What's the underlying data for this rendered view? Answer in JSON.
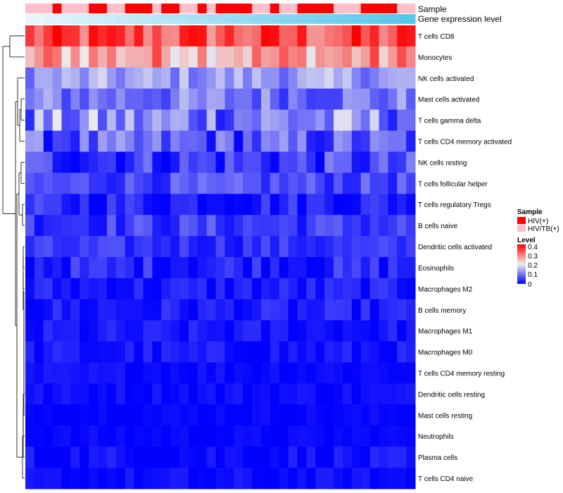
{
  "chart_data": {
    "type": "heatmap",
    "annotations": {
      "sample_label": "Sample",
      "gene_label": "Gene expression level",
      "sample_groups": [
        "HIV/TB(+)",
        "HIV/TB(+)",
        "HIV/TB(+)",
        "HIV(+)",
        "HIV/TB(+)",
        "HIV/TB(+)",
        "HIV/TB(+)",
        "HIV(+)",
        "HIV(+)",
        "HIV/TB(+)",
        "HIV/TB(+)",
        "HIV(+)",
        "HIV(+)",
        "HIV(+)",
        "HIV/TB(+)",
        "HIV(+)",
        "HIV(+)",
        "HIV/TB(+)",
        "HIV/TB(+)",
        "HIV(+)",
        "HIV/TB(+)",
        "HIV(+)",
        "HIV(+)",
        "HIV(+)",
        "HIV(+)",
        "HIV/TB(+)",
        "HIV/TB(+)",
        "HIV(+)",
        "HIV/TB(+)",
        "HIV/TB(+)",
        "HIV(+)",
        "HIV(+)",
        "HIV(+)",
        "HIV(+)",
        "HIV/TB(+)",
        "HIV/TB(+)",
        "HIV/TB(+)",
        "HIV(+)",
        "HIV(+)",
        "HIV(+)",
        "HIV(+)",
        "HIV/TB(+)",
        "HIV/TB(+)"
      ]
    },
    "rows": [
      "T cells CD8",
      "Monocytes",
      "NK cells activated",
      "Mast cells activated",
      "T cells gamma delta",
      "T cells CD4 memory activated",
      "NK cells resting",
      "T cells follicular helper",
      "T cells regulatory  Tregs",
      "B cells naive",
      "Dendritic cells activated",
      "Eosinophils",
      "Macrophages M2",
      "B cells memory",
      "Macrophages M1",
      "Macrophages M0",
      "T cells CD4 memory resting",
      "Dendritic cells resting",
      "Mast cells resting",
      "Neutrophils",
      "Plasma cells",
      "T cells CD4 naive"
    ],
    "row_base_levels": [
      0.33,
      0.27,
      0.13,
      0.1,
      0.11,
      0.07,
      0.05,
      0.06,
      0.03,
      0.05,
      0.04,
      0.03,
      0.02,
      0.02,
      0.015,
      0.015,
      0.01,
      0.01,
      0.005,
      0.005,
      0.01,
      0.005
    ],
    "row_spread": [
      0.08,
      0.08,
      0.05,
      0.06,
      0.09,
      0.07,
      0.06,
      0.04,
      0.04,
      0.04,
      0.03,
      0.04,
      0.03,
      0.03,
      0.025,
      0.025,
      0.015,
      0.015,
      0.01,
      0.01,
      0.025,
      0.02
    ],
    "n_samples": 43,
    "legend": {
      "sample_title": "Sample",
      "sample_entries": [
        {
          "label": "HIV(+)",
          "color": "#ff0000"
        },
        {
          "label": "HIV/TB(+)",
          "color": "#ffc0cb"
        }
      ],
      "level_title": "Level",
      "level_ticks": [
        "0.4",
        "0.3",
        "0.2",
        "0.1",
        "0"
      ],
      "range": [
        0,
        0.4
      ]
    },
    "colors": {
      "low": "#0000ff",
      "mid": "#eeeeee",
      "high": "#ff0000",
      "gene_bar_start": "#e8f6fc",
      "gene_bar_end": "#55c6ec"
    }
  }
}
